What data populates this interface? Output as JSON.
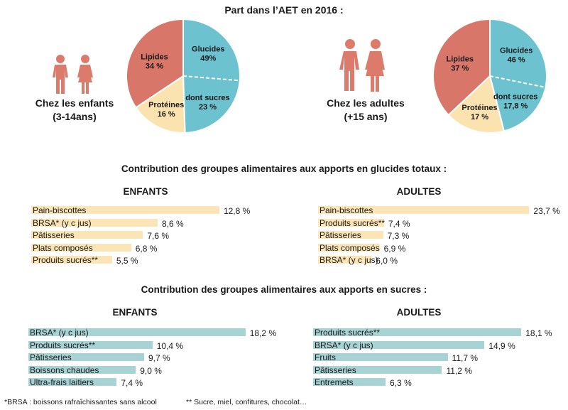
{
  "colors": {
    "glucides": "#6cc3cf",
    "lipides": "#d8766a",
    "proteines": "#fbe3b0",
    "bar_glucides": "#fbe5b7",
    "bar_sucres": "#a8d3d4",
    "figure": "#dc7b6c"
  },
  "title": "Part  dans l’AET en 2016 :",
  "groups": [
    {
      "label_line1": "Chez les enfants",
      "label_line2": "(3-14ans)",
      "icon": "child-figures-icon"
    },
    {
      "label_line1": "Chez les adultes",
      "label_line2": "(+15 ans)",
      "icon": "adult-figures-icon"
    }
  ],
  "section1_title": "Contribution des groupes alimentaires aux apports en glucides totaux :",
  "section2_title": "Contribution des groupes alimentaires aux apports en sucres :",
  "footnotes": {
    "brsa": "*BRSA : boissons rafraîchissantes sans alcool",
    "sucres": "** Sucre, miel, confitures, chocolat…"
  },
  "chart_data": [
    {
      "type": "pie",
      "title": "Chez les enfants (3-14ans)",
      "slices": [
        {
          "name": "Glucides",
          "value": 49,
          "label": "49%",
          "subslice": {
            "name": "dont sucres",
            "value": 23,
            "label": "23 %"
          }
        },
        {
          "name": "Protéines",
          "value": 16,
          "label": "16 %"
        },
        {
          "name": "Lipides",
          "value": 34,
          "label": "34 %"
        }
      ]
    },
    {
      "type": "pie",
      "title": "Chez les adultes (+15 ans)",
      "slices": [
        {
          "name": "Glucides",
          "value": 46,
          "label": "46 %",
          "subslice": {
            "name": "dont sucres",
            "value": 17.8,
            "label": "17,8 %"
          }
        },
        {
          "name": "Protéines",
          "value": 17,
          "label": "17 %"
        },
        {
          "name": "Lipides",
          "value": 37,
          "label": "37 %"
        }
      ]
    },
    {
      "type": "bar",
      "title": "ENFANTS",
      "categories": [
        "Pain-biscottes",
        "BRSA* (y c jus)",
        "Pâtisseries",
        "Plats composés",
        "Produits sucrés**"
      ],
      "values": [
        12.8,
        8.6,
        7.6,
        6.8,
        5.5
      ],
      "value_labels": [
        "12,8 %",
        "8,6 %",
        "7,6 %",
        "6,8 %",
        "5,5 %"
      ]
    },
    {
      "type": "bar",
      "title": "ADULTES",
      "categories": [
        "Pain-biscottes",
        "Produits sucrés**",
        "Pâtisseries",
        "Plats composés",
        "BRSA* (y c jus)"
      ],
      "values": [
        23.7,
        7.4,
        7.3,
        6.9,
        6.0
      ],
      "value_labels": [
        "23,7 %",
        "7,4 %",
        "7,3 %",
        "6,9 %",
        "6,0 %"
      ]
    },
    {
      "type": "bar",
      "title": "ENFANTS",
      "categories": [
        "BRSA* (y c jus)",
        "Produits sucrés**",
        "Pâtisseries",
        "Boissons chaudes",
        "Ultra-frais laitiers"
      ],
      "values": [
        18.2,
        10.4,
        9.7,
        9.0,
        7.4
      ],
      "value_labels": [
        "18,2 %",
        "10,4 %",
        "9,7 %",
        "9,0 %",
        "7,4 %"
      ]
    },
    {
      "type": "bar",
      "title": "ADULTES",
      "categories": [
        "Produits sucrés**",
        "BRSA* (y c jus)",
        "Fruits",
        "Pâtisseries",
        "Entremets"
      ],
      "values": [
        18.1,
        14.9,
        11.7,
        11.2,
        6.3
      ],
      "value_labels": [
        "18,1 %",
        "14,9 %",
        "11,7 %",
        "11,2 %",
        "6,3 %"
      ]
    }
  ]
}
